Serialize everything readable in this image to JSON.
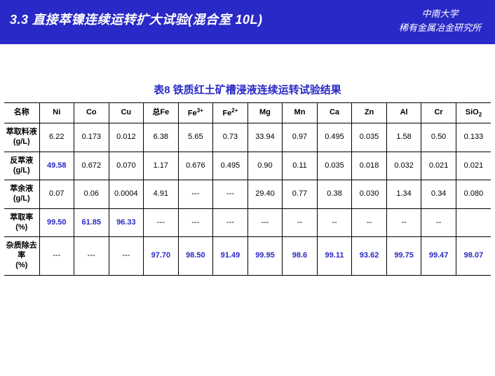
{
  "header": {
    "title": "3.3 直接萃镍连续运转扩大试验(混合室 10L)",
    "org_line1": "中南大学",
    "org_line2": "稀有金属冶金研究所"
  },
  "table": {
    "caption": "表8  铁质红土矿槽浸液连续运转试验结果",
    "columns": [
      "名称",
      "Ni",
      "Co",
      "Cu",
      "总Fe",
      "Fe3+",
      "Fe2+",
      "Mg",
      "Mn",
      "Ca",
      "Zn",
      "Al",
      "Cr",
      "SiO2"
    ],
    "colors": {
      "header_bg": "#2929c7",
      "accent_text": "#2929c7",
      "body_bg": "#ffffff",
      "border": "#000000",
      "text": "#000000"
    },
    "fontsize": {
      "header_title": 18,
      "header_org": 13,
      "caption": 15,
      "cell": 11
    },
    "rows": [
      {
        "label": "萃取料液(g/L)",
        "cells": [
          "6.22",
          "0.173",
          "0.012",
          "6.38",
          "5.65",
          "0.73",
          "33.94",
          "0.97",
          "0.495",
          "0.035",
          "1.58",
          "0.50",
          "0.133"
        ],
        "blue": []
      },
      {
        "label": "反萃液(g/L)",
        "cells": [
          "49.58",
          "0.672",
          "0.070",
          "1.17",
          "0.676",
          "0.495",
          "0.90",
          "0.11",
          "0.035",
          "0.018",
          "0.032",
          "0.021",
          "0.021"
        ],
        "blue": [
          0
        ]
      },
      {
        "label": "萃余液(g/L)",
        "cells": [
          "0.07",
          "0.06",
          "0.0004",
          "4.91",
          "---",
          "---",
          "29.40",
          "0.77",
          "0.38",
          "0.030",
          "1.34",
          "0.34",
          "0.080"
        ],
        "blue": []
      },
      {
        "label": "萃取率(%)",
        "cells": [
          "99.50",
          "61.85",
          "96.33",
          "---",
          "---",
          "---",
          "---",
          "--",
          "--",
          "--",
          "--",
          "--",
          ""
        ],
        "blue": [
          0,
          1,
          2
        ]
      },
      {
        "label": "杂质除去率(%)",
        "cells": [
          "---",
          "---",
          "---",
          "97.70",
          "98.50",
          "91.49",
          "99.95",
          "98.6",
          "99.11",
          "93.62",
          "99.75",
          "99.47",
          "98.07"
        ],
        "blue": [
          3,
          4,
          5,
          6,
          7,
          8,
          9,
          10,
          11,
          12
        ]
      }
    ]
  }
}
